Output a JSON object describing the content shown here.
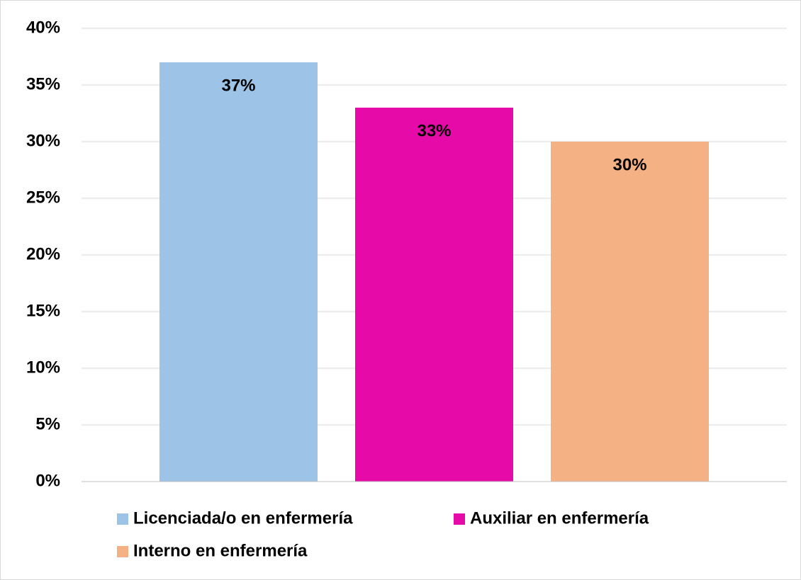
{
  "chart_data": {
    "type": "bar",
    "categories": [
      null
    ],
    "series": [
      {
        "name": "Licenciada/o en enfermería",
        "color": "#9dc3e6",
        "values": [
          37
        ],
        "value_labels": [
          "37%"
        ]
      },
      {
        "name": "Auxiliar en enfermería",
        "color": "#e60aa9",
        "values": [
          33
        ],
        "value_labels": [
          "33%"
        ]
      },
      {
        "name": "Interno en enfermería",
        "color": "#f4b183",
        "values": [
          30
        ],
        "value_labels": [
          "30%"
        ]
      }
    ],
    "ylim": [
      0,
      40
    ],
    "yticks": [
      {
        "value": 0,
        "label": "0%"
      },
      {
        "value": 5,
        "label": "5%"
      },
      {
        "value": 10,
        "label": "10%"
      },
      {
        "value": 15,
        "label": "15%"
      },
      {
        "value": 20,
        "label": "20%"
      },
      {
        "value": 25,
        "label": "25%"
      },
      {
        "value": 30,
        "label": "30%"
      },
      {
        "value": 35,
        "label": "35%"
      },
      {
        "value": 40,
        "label": "40%"
      }
    ],
    "grid": true,
    "legend": "bottom"
  }
}
